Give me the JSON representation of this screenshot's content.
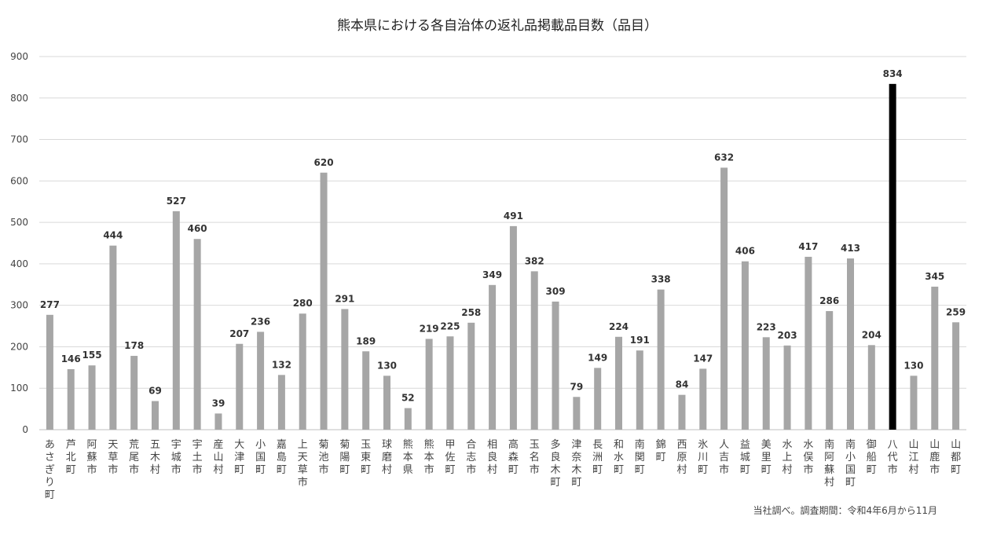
{
  "chart_data": {
    "type": "bar",
    "title": "熊本県における各自治体の返礼品掲載品目数（品目）",
    "xlabel": "",
    "ylabel": "",
    "ylim": [
      0,
      900
    ],
    "yticks": [
      0,
      100,
      200,
      300,
      400,
      500,
      600,
      700,
      800,
      900
    ],
    "grid": true,
    "legend": "none",
    "colors": {
      "default": "#a6a6a6",
      "highlight": "#000000",
      "grid": "#d9d9d9"
    },
    "highlight_category": "八代市",
    "categories": [
      "あさぎり町",
      "芦北町",
      "阿蘇市",
      "天草市",
      "荒尾市",
      "五木村",
      "宇城市",
      "宇土市",
      "産山村",
      "大津町",
      "小国町",
      "嘉島町",
      "上天草市",
      "菊池市",
      "菊陽町",
      "玉東町",
      "球磨村",
      "熊本県",
      "熊本市",
      "甲佐町",
      "合志市",
      "相良村",
      "高森町",
      "玉名市",
      "多良木町",
      "津奈木町",
      "長洲町",
      "和水町",
      "南関町",
      "錦町",
      "西原村",
      "氷川町",
      "人吉市",
      "益城町",
      "美里町",
      "水上村",
      "水俣市",
      "南阿蘇村",
      "南小国町",
      "御船町",
      "八代市",
      "山江村",
      "山鹿市",
      "山都町"
    ],
    "values": [
      277,
      146,
      155,
      444,
      178,
      69,
      527,
      460,
      39,
      207,
      236,
      132,
      280,
      620,
      291,
      189,
      130,
      52,
      219,
      225,
      258,
      349,
      491,
      382,
      309,
      79,
      149,
      224,
      191,
      338,
      84,
      147,
      632,
      406,
      223,
      203,
      417,
      286,
      413,
      204,
      834,
      130,
      345,
      259
    ]
  },
  "footnote": "当社調べ。調査期間：令和4年6月から11月"
}
